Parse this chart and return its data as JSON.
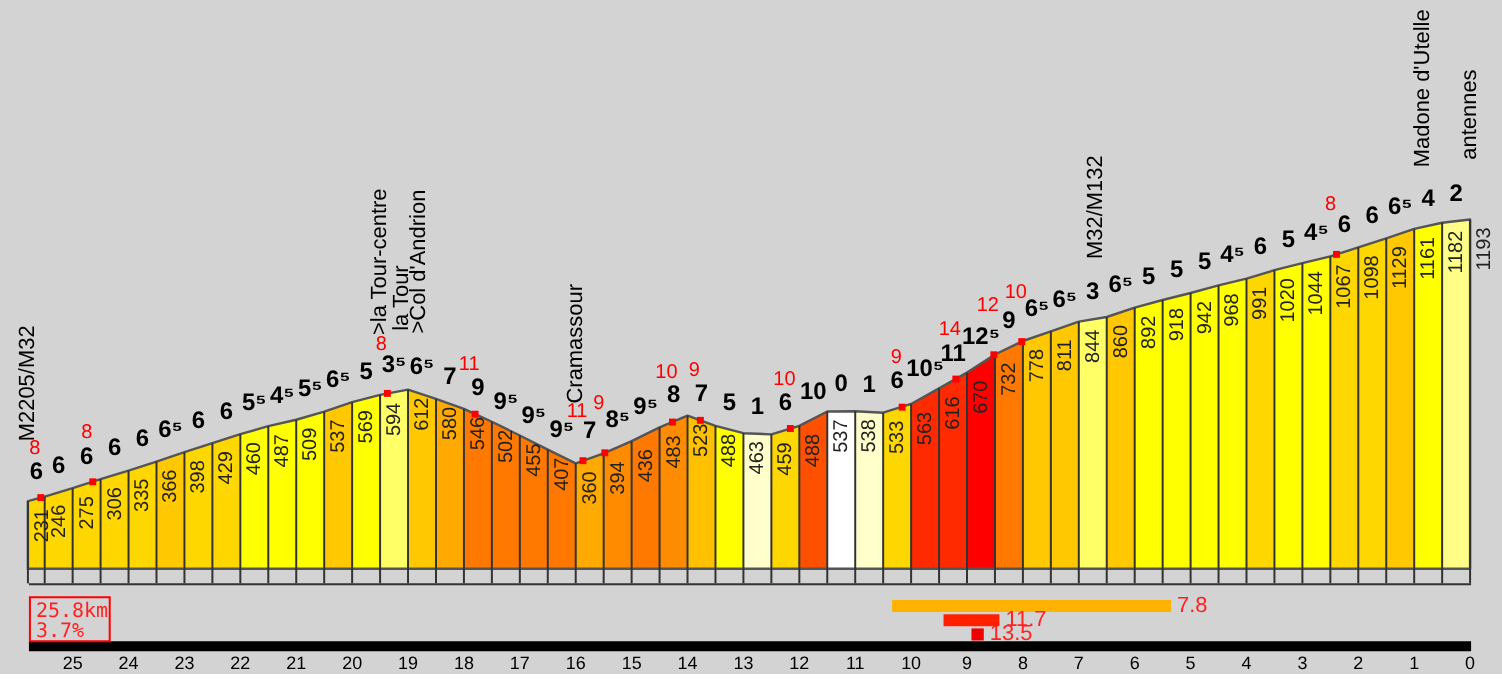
{
  "chart_data": [
    {
      "type": "area",
      "x": [
        25.8,
        25.5,
        25,
        24.5,
        24,
        23.5,
        23,
        22.5,
        22,
        21.5,
        21,
        20.5,
        20,
        19.5,
        19,
        18.5,
        18,
        17.5,
        17,
        16.5,
        16,
        15.5,
        15,
        14.5,
        14,
        13.5,
        13,
        12.5,
        12,
        11.5,
        11,
        10.5,
        10,
        9.5,
        9,
        8.5,
        8,
        7.5,
        7,
        6.5,
        6,
        5.5,
        5,
        4.5,
        4,
        3.5,
        3,
        2.5,
        2,
        1.5,
        1,
        0.5,
        0
      ],
      "series": [
        {
          "type": "area",
          "data_labels": true,
          "values": [
            231,
            246,
            275,
            306,
            335,
            366,
            398,
            429,
            460,
            487,
            509,
            537,
            569,
            594,
            612,
            580,
            546,
            502,
            455,
            407,
            360,
            394,
            436,
            483,
            523,
            488,
            463,
            459,
            488,
            537,
            538,
            533,
            563,
            616,
            670,
            732,
            778,
            811,
            844,
            860,
            892,
            918,
            942,
            968,
            991,
            1020,
            1044,
            1067,
            1098,
            1129,
            1161,
            1182,
            1193
          ],
          "colors": [
            "#ffd700",
            "#ffd700",
            "#ffd700",
            "#ffd700",
            "#ffd700",
            "#ffc800",
            "#ffd700",
            "#ffd700",
            "#ffff00",
            "#ffff00",
            "#ffff00",
            "#ffc800",
            "#ffff00",
            "#ffff66",
            "#ffc800",
            "#ffaa00",
            "#ff7800",
            "#ff7800",
            "#ff7800",
            "#ff7800",
            "#ffaa00",
            "#ff8c00",
            "#ff7800",
            "#ff8c00",
            "#ffc000",
            "#ffff00",
            "#ffffcc",
            "#ffd700",
            "#ff5000",
            "#ffffff",
            "#ffffcc",
            "#ffd700",
            "#ff2a00",
            "#ff2a00",
            "#ff0000",
            "#ff7800",
            "#ffc800",
            "#ffc800",
            "#ffff66",
            "#ffc800",
            "#ffff00",
            "#ffff00",
            "#ffff00",
            "#ffff00",
            "#ffd700",
            "#ffff00",
            "#ffff00",
            "#ffd700",
            "#ffd700",
            "#ffc800",
            "#ffff00",
            "#ffff88",
            "#d3d3d3"
          ]
        },
        {
          "type": "scatter",
          "color": "#ff0000",
          "marker": "square",
          "x": [
            25.57,
            24.64,
            19.37,
            17.8,
            15.87,
            15.48,
            14.27,
            13.77,
            12.16,
            10.16,
            9.2,
            8.52,
            8.02,
            2.39
          ],
          "values": [
            243,
            297,
            599,
            528,
            369,
            396,
            501,
            507,
            479,
            552,
            648,
            731,
            776,
            1074
          ]
        }
      ],
      "xlim": [
        25.8,
        0
      ],
      "ylim": [
        -50,
        1940
      ],
      "tick_labels": false,
      "grid": false,
      "annotations": [
        {
          "text": "6",
          "x": 25.65,
          "y": 238.5
        },
        {
          "text": "6",
          "x": 25.25,
          "y": 260.5
        },
        {
          "text": "6",
          "x": 24.75,
          "y": 290.5
        },
        {
          "text": "6",
          "x": 24.25,
          "y": 320.5
        },
        {
          "text": "6",
          "x": 23.75,
          "y": 350.5
        },
        {
          "text": "6⁵",
          "x": 23.25,
          "y": 382
        },
        {
          "text": "6",
          "x": 22.75,
          "y": 413.5
        },
        {
          "text": "6",
          "x": 22.25,
          "y": 444.5
        },
        {
          "text": "5⁵",
          "x": 21.75,
          "y": 473.5
        },
        {
          "text": "4⁵",
          "x": 21.25,
          "y": 498
        },
        {
          "text": "5⁵",
          "x": 20.75,
          "y": 523
        },
        {
          "text": "6⁵",
          "x": 20.25,
          "y": 553
        },
        {
          "text": "5",
          "x": 19.75,
          "y": 581.5
        },
        {
          "text": "3⁵",
          "x": 19.25,
          "y": 603
        },
        {
          "text": "6⁵",
          "x": 18.75,
          "y": 596
        },
        {
          "text": "7",
          "x": 18.25,
          "y": 563
        },
        {
          "text": "9",
          "x": 17.75,
          "y": 524
        },
        {
          "text": "9⁵",
          "x": 17.25,
          "y": 478.5
        },
        {
          "text": "9⁵",
          "x": 16.75,
          "y": 431
        },
        {
          "text": "9⁵",
          "x": 16.25,
          "y": 383.5
        },
        {
          "text": "7",
          "x": 15.75,
          "y": 377
        },
        {
          "text": "8⁵",
          "x": 15.25,
          "y": 415
        },
        {
          "text": "9⁵",
          "x": 14.75,
          "y": 459.5
        },
        {
          "text": "8",
          "x": 14.25,
          "y": 503
        },
        {
          "text": "7",
          "x": 13.75,
          "y": 505.5
        },
        {
          "text": "5",
          "x": 13.25,
          "y": 475.5
        },
        {
          "text": "1",
          "x": 12.75,
          "y": 461
        },
        {
          "text": "6",
          "x": 12.25,
          "y": 473.5
        },
        {
          "text": "10",
          "x": 11.75,
          "y": 512.5
        },
        {
          "text": "0",
          "x": 11.25,
          "y": 537.5
        },
        {
          "text": "1",
          "x": 10.75,
          "y": 535.5
        },
        {
          "text": "6",
          "x": 10.25,
          "y": 548
        },
        {
          "text": "10⁵",
          "x": 9.75,
          "y": 589.5
        },
        {
          "text": "11",
          "x": 9.25,
          "y": 643
        },
        {
          "text": "12⁵",
          "x": 8.75,
          "y": 701
        },
        {
          "text": "9",
          "x": 8.25,
          "y": 755
        },
        {
          "text": "6⁵",
          "x": 7.75,
          "y": 794.5
        },
        {
          "text": "6⁵",
          "x": 7.25,
          "y": 827.5
        },
        {
          "text": "3",
          "x": 6.75,
          "y": 852
        },
        {
          "text": "6⁵",
          "x": 6.25,
          "y": 876
        },
        {
          "text": "5",
          "x": 5.75,
          "y": 905
        },
        {
          "text": "5",
          "x": 5.25,
          "y": 930
        },
        {
          "text": "5",
          "x": 4.75,
          "y": 955
        },
        {
          "text": "4⁵",
          "x": 4.25,
          "y": 979.5
        },
        {
          "text": "6",
          "x": 3.75,
          "y": 1005.5
        },
        {
          "text": "5",
          "x": 3.25,
          "y": 1032
        },
        {
          "text": "4⁵",
          "x": 2.75,
          "y": 1055.5
        },
        {
          "text": "6",
          "x": 2.25,
          "y": 1082.5
        },
        {
          "text": "6",
          "x": 1.75,
          "y": 1113.5
        },
        {
          "text": "6⁵",
          "x": 1.25,
          "y": 1145
        },
        {
          "text": "4",
          "x": 0.75,
          "y": 1171.5
        },
        {
          "text": "2",
          "x": 0.25,
          "y": 1187.5
        },
        {
          "text": "8",
          "x": 25.57,
          "y": 243
        },
        {
          "text": "8",
          "x": 24.64,
          "y": 297
        },
        {
          "text": "8",
          "x": 19.37,
          "y": 599
        },
        {
          "text": "11",
          "x": 17.8,
          "y": 528
        },
        {
          "text": "11",
          "x": 15.87,
          "y": 369
        },
        {
          "text": "9",
          "x": 15.48,
          "y": 396
        },
        {
          "text": "10",
          "x": 14.27,
          "y": 501
        },
        {
          "text": "9",
          "x": 13.77,
          "y": 507
        },
        {
          "text": "10",
          "x": 12.16,
          "y": 479
        },
        {
          "text": "9",
          "x": 10.16,
          "y": 552
        },
        {
          "text": "14",
          "x": 9.2,
          "y": 648
        },
        {
          "text": "12",
          "x": 8.52,
          "y": 731
        },
        {
          "text": "10",
          "x": 8.02,
          "y": 776
        },
        {
          "text": "8",
          "x": 2.39,
          "y": 1074
        },
        {
          "text": "M2205/M32",
          "x": 25.8,
          "y": 231
        },
        {
          "text": ">la Tour-centre",
          "x": 19.5,
          "y": 594
        },
        {
          "text": "la Tour",
          "x": 19.1,
          "y": 608.4
        },
        {
          "text": ">Col d'Andrion",
          "x": 18.8,
          "y": 599.2
        },
        {
          "text": "Cramassour",
          "x": 16,
          "y": 360
        },
        {
          "text": "M32/M132",
          "x": 6.7,
          "y": 853.6
        },
        {
          "text": "Madone d'Utelle",
          "x": 0.85,
          "y": 1167.3
        },
        {
          "text": "antennes",
          "x": 0,
          "y": 1193
        }
      ]
    },
    {
      "type": "bar",
      "orientation": "horizontal",
      "categories": [
        null,
        null,
        null
      ],
      "base": [
        10.34,
        9.42,
        8.92
      ],
      "values": [
        -4.99,
        -1.0,
        -0.22
      ],
      "colors": [
        "#ffb300",
        "#ff2000",
        "#ee0000"
      ],
      "xlim": [
        25.8,
        0
      ],
      "xticks": [
        25,
        24,
        23,
        22,
        21,
        20,
        19,
        18,
        17,
        16,
        15,
        14,
        13,
        12,
        11,
        10,
        9,
        8,
        7,
        6,
        5,
        4,
        3,
        2,
        1,
        0
      ],
      "tick_labels": "x",
      "grid": false,
      "annotations": [
        {
          "text": "7.8",
          "x": 5.35
        },
        {
          "text": "11.7",
          "x": 8.42
        },
        {
          "text": "13.5",
          "x": 8.7
        },
        "25.8km",
        "3.7%"
      ]
    }
  ]
}
